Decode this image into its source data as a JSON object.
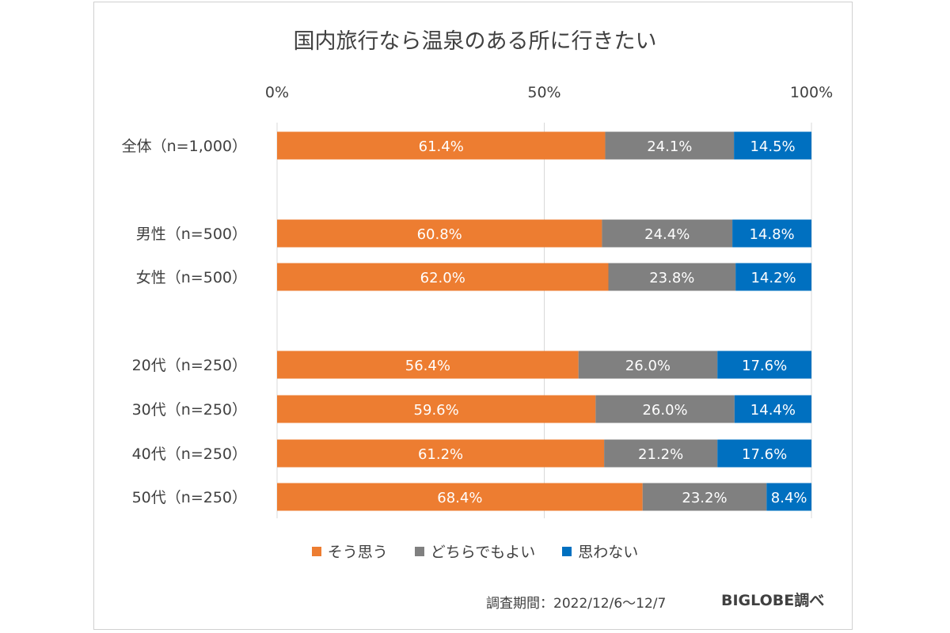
{
  "colors": {
    "so_omou": "#ed7d31",
    "dochira": "#808080",
    "omowanai": "#0070c0",
    "grid": "#d9d9d9",
    "label_text": "#ffffff"
  },
  "footer": {
    "period": "調査期間：2022/12/6〜12/7",
    "brand": "BIGLOBE調べ"
  },
  "chart_data": {
    "type": "bar",
    "orientation": "horizontal",
    "stacked": "percent",
    "title": "国内旅行なら温泉のある所に行きたい",
    "xlim": [
      0,
      100
    ],
    "x_ticks": [
      "0%",
      "50%",
      "100%"
    ],
    "grid": true,
    "legend_position": "bottom",
    "categories": [
      "全体（n=1,000）",
      "男性（n=500）",
      "女性（n=500）",
      "20代（n=250）",
      "30代（n=250）",
      "40代（n=250）",
      "50代（n=250）"
    ],
    "series": [
      {
        "name": "そう思う",
        "values": [
          61.4,
          60.8,
          62.0,
          56.4,
          59.6,
          61.2,
          68.4
        ],
        "labels": [
          "61.4%",
          "60.8%",
          "62.0%",
          "56.4%",
          "59.6%",
          "61.2%",
          "68.4%"
        ]
      },
      {
        "name": "どちらでもよい",
        "values": [
          24.1,
          24.4,
          23.8,
          26.0,
          26.0,
          21.2,
          23.2
        ],
        "labels": [
          "24.1%",
          "24.4%",
          "23.8%",
          "26.0%",
          "26.0%",
          "21.2%",
          "23.2%"
        ]
      },
      {
        "name": "思わない",
        "values": [
          14.5,
          14.8,
          14.2,
          17.6,
          14.4,
          17.6,
          8.4
        ],
        "labels": [
          "14.5%",
          "14.8%",
          "14.2%",
          "17.6%",
          "14.4%",
          "17.6%",
          "8.4%"
        ]
      }
    ]
  }
}
